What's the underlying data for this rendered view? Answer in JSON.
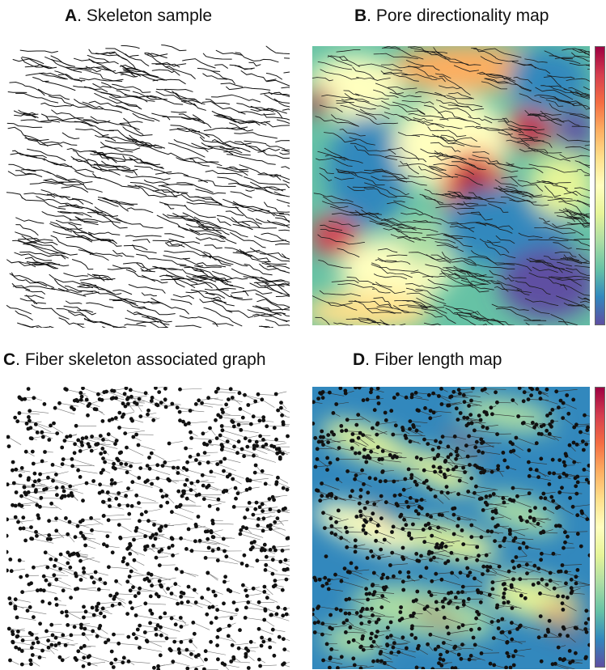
{
  "figure": {
    "panels": [
      {
        "letter": "A",
        "title": ". Skeleton sample"
      },
      {
        "letter": "B",
        "title": ". Pore directionality map"
      },
      {
        "letter": "C",
        "title": ". Fiber skeleton associated graph"
      },
      {
        "letter": "D",
        "title": ". Fiber length map"
      }
    ]
  },
  "colors": {
    "spectral": [
      "#5e4fa2",
      "#3288bd",
      "#66c2a5",
      "#abdda4",
      "#e6f598",
      "#ffffbf",
      "#fee08b",
      "#fdae61",
      "#f46d43",
      "#d53e4f",
      "#9e0142"
    ],
    "ink": "#111111"
  }
}
